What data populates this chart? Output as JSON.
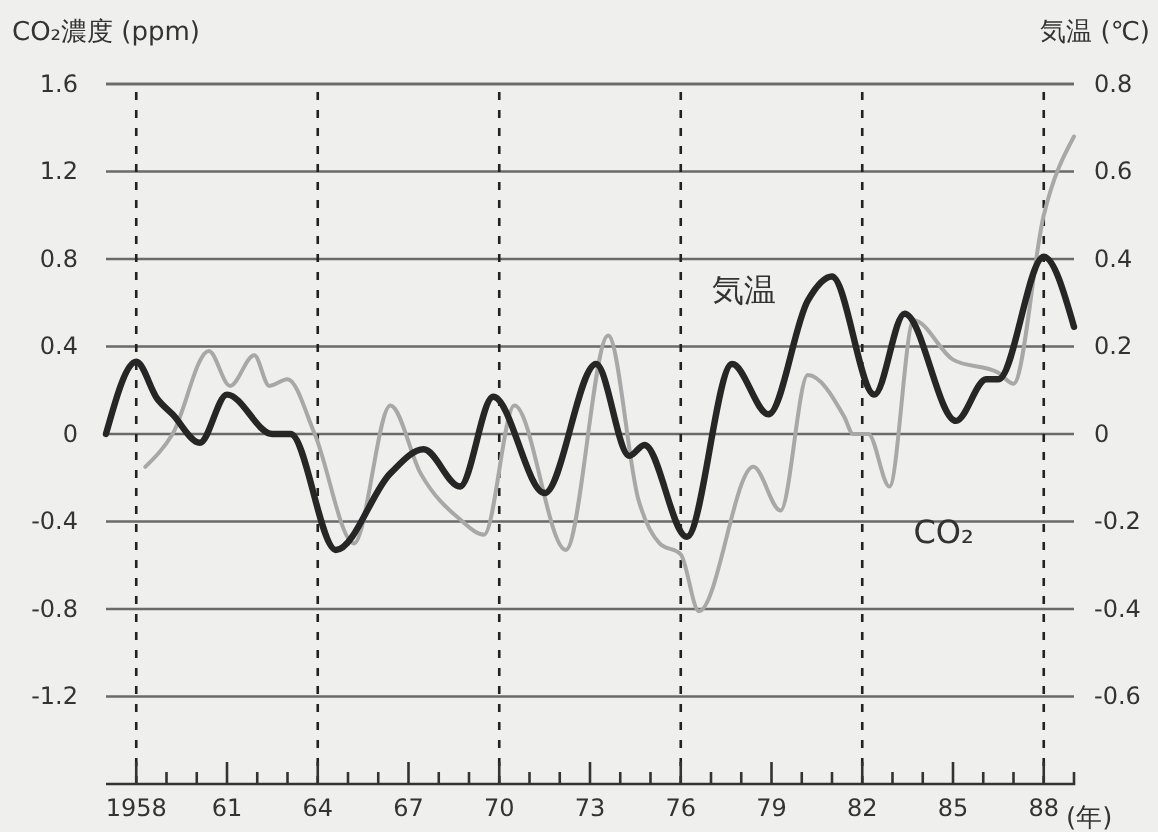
{
  "chart_data": {
    "type": "line",
    "ylabel": "CO₂濃度 (ppm)",
    "y2label": "気温 (℃)",
    "xlabel": "(年)",
    "xlim": [
      1957,
      1989
    ],
    "xticks": [
      {
        "value": 1958,
        "label": "1958"
      },
      {
        "value": 1959,
        "label": null
      },
      {
        "value": 1960,
        "label": null
      },
      {
        "value": 1961,
        "label": "61"
      },
      {
        "value": 1962,
        "label": null
      },
      {
        "value": 1963,
        "label": null
      },
      {
        "value": 1964,
        "label": "64"
      },
      {
        "value": 1965,
        "label": null
      },
      {
        "value": 1966,
        "label": null
      },
      {
        "value": 1967,
        "label": "67"
      },
      {
        "value": 1968,
        "label": null
      },
      {
        "value": 1969,
        "label": null
      },
      {
        "value": 1970,
        "label": "70"
      },
      {
        "value": 1971,
        "label": null
      },
      {
        "value": 1972,
        "label": null
      },
      {
        "value": 1973,
        "label": "73"
      },
      {
        "value": 1974,
        "label": null
      },
      {
        "value": 1975,
        "label": null
      },
      {
        "value": 1976,
        "label": "76"
      },
      {
        "value": 1977,
        "label": null
      },
      {
        "value": 1978,
        "label": null
      },
      {
        "value": 1979,
        "label": "79"
      },
      {
        "value": 1980,
        "label": null
      },
      {
        "value": 1981,
        "label": null
      },
      {
        "value": 1982,
        "label": "82"
      },
      {
        "value": 1983,
        "label": null
      },
      {
        "value": 1984,
        "label": null
      },
      {
        "value": 1985,
        "label": "85"
      },
      {
        "value": 1986,
        "label": null
      },
      {
        "value": 1987,
        "label": null
      },
      {
        "value": 1988,
        "label": "88"
      }
    ],
    "ylim": [
      -1.6,
      1.6
    ],
    "yticks": [
      -1.2,
      -0.8,
      -0.4,
      0,
      0.4,
      0.8,
      1.2,
      1.6
    ],
    "y2lim": [
      -0.8,
      0.8
    ],
    "y2ticks": [
      -0.6,
      -0.4,
      -0.2,
      0,
      0.2,
      0.4,
      0.6,
      0.8
    ],
    "grid": "y",
    "legend": false,
    "marker": "none",
    "line_style": "solid",
    "ref_lines": [
      {
        "axis": "x",
        "value": 1958,
        "line_style": "dashed"
      },
      {
        "axis": "x",
        "value": 1964,
        "line_style": "dashed"
      },
      {
        "axis": "x",
        "value": 1970,
        "line_style": "dashed"
      },
      {
        "axis": "x",
        "value": 1976,
        "line_style": "dashed"
      },
      {
        "axis": "x",
        "value": 1982,
        "line_style": "dashed"
      },
      {
        "axis": "x",
        "value": 1988,
        "line_style": "dashed"
      }
    ],
    "series": [
      {
        "name": "CO₂",
        "color": "#a8a8a8",
        "x": [
          1958.3,
          1959.2,
          1960.4,
          1961.1,
          1961.9,
          1962.4,
          1963.0,
          1963.9,
          1965.2,
          1966.4,
          1967.4,
          1968.7,
          1969.5,
          1970.5,
          1972.2,
          1973.6,
          1974.6,
          1975.3,
          1976.0,
          1976.6,
          1978.4,
          1979.3,
          1980.2,
          1981.4,
          1981.7,
          1982.2,
          1982.9,
          1983.7,
          1985.0,
          1986.5,
          1987.0,
          1988.0,
          1989.0
        ],
        "values": [
          -0.15,
          0,
          0.38,
          0.22,
          0.36,
          0.22,
          0.25,
          0,
          -0.5,
          0.13,
          -0.18,
          -0.39,
          -0.46,
          0.13,
          -0.53,
          0.45,
          -0.3,
          -0.5,
          -0.55,
          -0.81,
          -0.15,
          -0.35,
          0.27,
          0.08,
          0,
          0,
          -0.24,
          0.52,
          0.34,
          0.28,
          0.23,
          1.0,
          1.36
        ]
      },
      {
        "name": "気温",
        "color": "#262626",
        "axis": "y2",
        "x": [
          1957.0,
          1958.0,
          1958.7,
          1959.2,
          1960.1,
          1961.0,
          1962.5,
          1963.1,
          1964.6,
          1966.4,
          1967.5,
          1968.7,
          1969.8,
          1971.5,
          1973.2,
          1974.3,
          1974.8,
          1976.2,
          1977.7,
          1978.9,
          1980.2,
          1981.0,
          1982.4,
          1983.4,
          1985.1,
          1986.1,
          1986.5,
          1988.0,
          1989.0
        ],
        "values": [
          0,
          0.165,
          0.08,
          0.045,
          -0.02,
          0.09,
          0,
          0,
          -0.265,
          -0.09,
          -0.035,
          -0.12,
          0.085,
          -0.135,
          0.16,
          -0.05,
          -0.025,
          -0.235,
          0.16,
          0.045,
          0.305,
          0.36,
          0.09,
          0.275,
          0.03,
          0.125,
          0.125,
          0.405,
          0.245
        ]
      }
    ]
  }
}
